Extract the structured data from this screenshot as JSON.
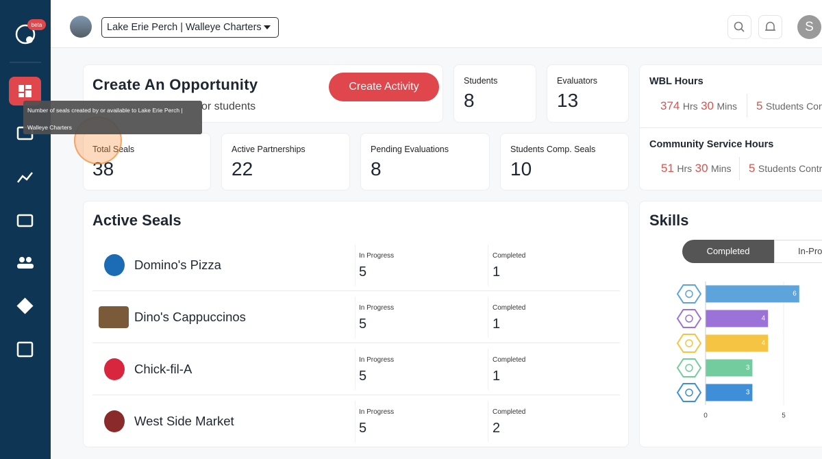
{
  "header": {
    "beta": "beta",
    "org_name": "Lake Erie Perch | Walleye Charters",
    "user_initial": "S"
  },
  "tooltip": "Number of seals created by or available to Lake Erie Perch | Walleye Charters",
  "opportunity": {
    "title": "Create An Opportunity",
    "subtitle": "or students",
    "button": "Create Activity"
  },
  "stats": [
    {
      "label": "Students",
      "value": "8"
    },
    {
      "label": "Evaluators",
      "value": "13"
    },
    {
      "label": "Total Seals",
      "value": "38"
    },
    {
      "label": "Active Partnerships",
      "value": "22"
    },
    {
      "label": "Pending Evaluations",
      "value": "8"
    },
    {
      "label": "Students Comp. Seals",
      "value": "10"
    }
  ],
  "wbl_hours": {
    "title": "WBL Hours",
    "hours": "374",
    "hrs": "Hrs",
    "mins": "30",
    "mins_label": "Mins",
    "students": "5",
    "students_label": "Students Con"
  },
  "community_hours": {
    "title": "Community Service Hours",
    "hours": "51",
    "hrs": "Hrs",
    "mins": "30",
    "mins_label": "Mins",
    "students": "5",
    "students_label": "Students Contr"
  },
  "active_seals": {
    "title": "Active Seals",
    "rows": [
      {
        "name": "Domino's Pizza",
        "in_progress_label": "In Progress",
        "in_progress": "5",
        "completed_label": "Completed",
        "completed": "1"
      },
      {
        "name": "Dino's Cappuccinos",
        "in_progress_label": "In Progress",
        "in_progress": "5",
        "completed_label": "Completed",
        "completed": "1"
      },
      {
        "name": "Chick-fil-A",
        "in_progress_label": "In Progress",
        "in_progress": "5",
        "completed_label": "Completed",
        "completed": "1"
      },
      {
        "name": "West Side Market",
        "in_progress_label": "In Progress",
        "in_progress": "5",
        "completed_label": "Completed",
        "completed": "2"
      }
    ]
  },
  "skills": {
    "title": "Skills",
    "tabs": [
      "Completed",
      "In-Prog"
    ]
  },
  "chart_data": {
    "type": "hbar",
    "categories": [
      null,
      null,
      null,
      null,
      null
    ],
    "values": [
      6,
      4,
      4,
      3,
      3
    ],
    "colors": [
      "#5da3dc",
      "#9b72d8",
      "#f6c443",
      "#72cc9e",
      "#3f8fd8"
    ],
    "xlim": [
      0,
      7.5
    ],
    "xticks": [
      0,
      5
    ],
    "grid": true
  }
}
